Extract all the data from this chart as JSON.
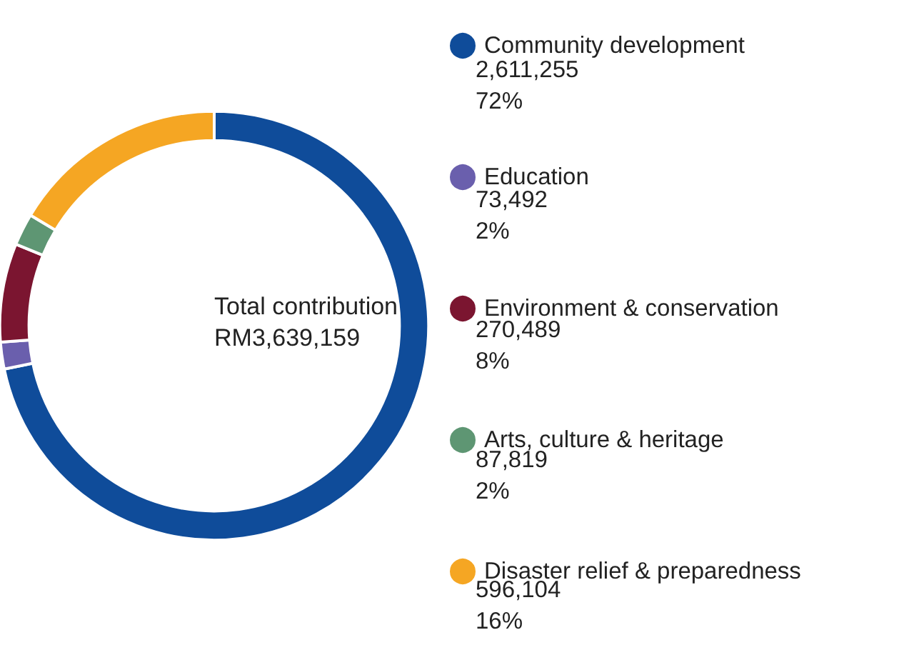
{
  "chart_data": {
    "type": "donut",
    "categories": [
      "Community development",
      "Education",
      "Environment & conservation",
      "Arts, culture & heritage",
      "Disaster relief & preparedness"
    ],
    "values": [
      2611255,
      73492,
      270489,
      87819,
      596104
    ],
    "colors": [
      "#0f4c9a",
      "#6a5fad",
      "#7b1530",
      "#5e9673",
      "#f5a623"
    ],
    "value_labels": [
      "2,611,255\n72%",
      "73,492\n2%",
      "270,489\n8%",
      "87,819\n2%",
      "596,104\n16%"
    ],
    "annotations": [
      "Total contribution",
      "RM3,639,159"
    ],
    "legend": "right"
  }
}
